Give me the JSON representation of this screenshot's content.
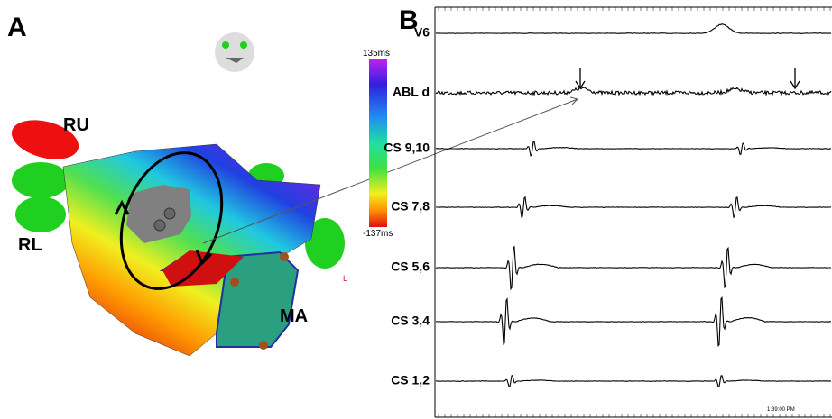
{
  "panel_a": {
    "label": "A",
    "anatomy": [
      "RU",
      "RL",
      "MA"
    ],
    "scale": {
      "max": "135ms",
      "min": "-137ms"
    },
    "orientation": "L"
  },
  "panel_b": {
    "label": "B",
    "channels": [
      "V6",
      "ABL d",
      "CS 9,10",
      "CS 7,8",
      "CS 5,6",
      "CS 3,4",
      "CS 1,2"
    ],
    "timestamp": "1:39:00 PM"
  }
}
